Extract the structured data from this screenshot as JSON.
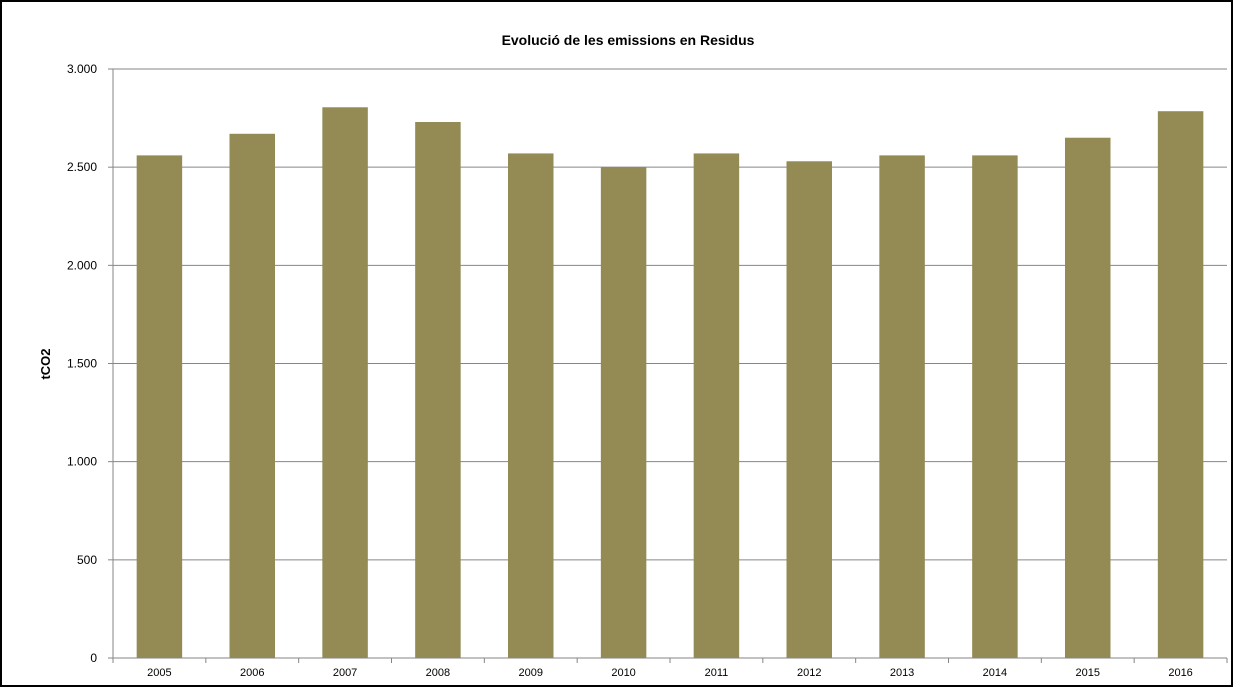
{
  "chart_data": {
    "type": "bar",
    "title": "Evolució de les emissions  en Residus",
    "xlabel": "",
    "ylabel": "tCO2",
    "categories": [
      "2005",
      "2006",
      "2007",
      "2008",
      "2009",
      "2010",
      "2011",
      "2012",
      "2013",
      "2014",
      "2015",
      "2016"
    ],
    "values": [
      2560,
      2670,
      2805,
      2730,
      2570,
      2500,
      2570,
      2530,
      2560,
      2560,
      2650,
      2785
    ],
    "ylim": [
      0,
      3000
    ],
    "yticks": [
      0,
      500,
      1000,
      1500,
      2000,
      2500,
      3000
    ],
    "ytick_labels": [
      "0",
      "500",
      "1.000",
      "1.500",
      "2.000",
      "2.500",
      "3.000"
    ],
    "grid": true,
    "legend": "none",
    "bar_color": "#948a54",
    "grid_color": "#868686"
  }
}
